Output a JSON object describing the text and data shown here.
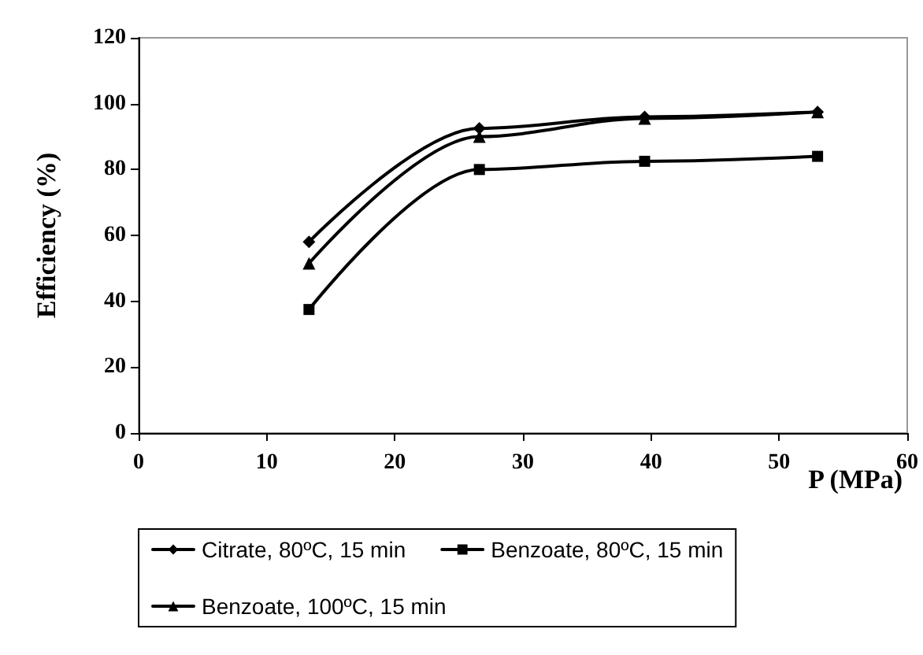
{
  "chart_data": {
    "type": "line",
    "xlabel": "P (MPa)",
    "ylabel": "Efficiency (%)",
    "x": [
      13.3,
      26.6,
      39.5,
      53
    ],
    "series": [
      {
        "name": "Citrate, 80ºC, 15 min",
        "color": "#000000",
        "marker": "diamond",
        "values": [
          58,
          92.5,
          96,
          97.5
        ]
      },
      {
        "name": "Benzoate, 80ºC, 15 min",
        "color": "#000000",
        "marker": "square",
        "values": [
          37.5,
          80,
          82.5,
          84
        ]
      },
      {
        "name": "Benzoate, 100ºC, 15 min",
        "color": "#000000",
        "marker": "triangle",
        "values": [
          51.5,
          90,
          95.5,
          97.5
        ]
      }
    ],
    "xlim": [
      0,
      60
    ],
    "xticks": [
      0,
      10,
      20,
      30,
      40,
      50,
      60
    ],
    "ylim": [
      0,
      120
    ],
    "yticks": [
      0,
      20,
      40,
      60,
      80,
      100,
      120
    ],
    "grid": false,
    "legend": "bottom",
    "line_style": "solid"
  }
}
